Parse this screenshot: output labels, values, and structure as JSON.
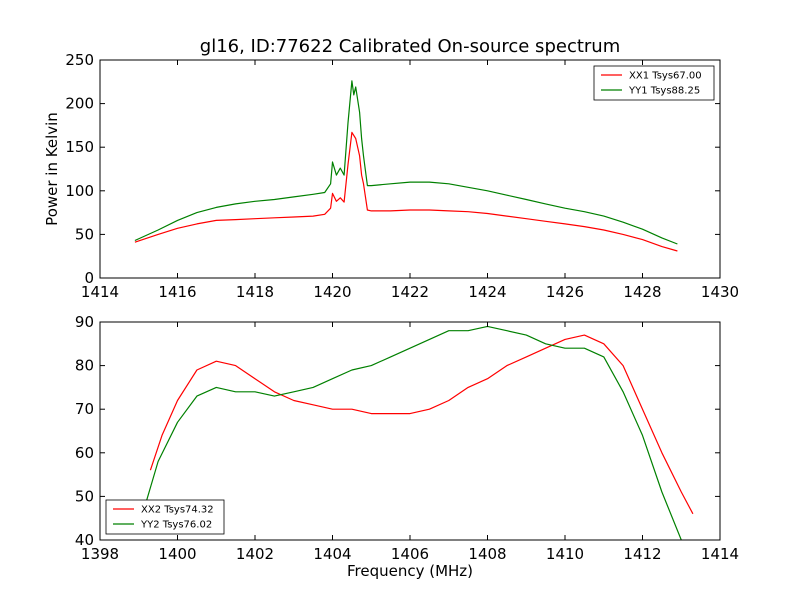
{
  "figure": {
    "title": "gl16, ID:77622 Calibrated On-source spectrum"
  },
  "chart_data": [
    {
      "type": "line",
      "title": "gl16, ID:77622 Calibrated On-source spectrum",
      "xlabel": "",
      "ylabel": "Power in Kelvin",
      "xlim": [
        1414,
        1430
      ],
      "ylim": [
        0,
        250
      ],
      "xticks": [
        1414,
        1416,
        1418,
        1420,
        1422,
        1424,
        1426,
        1428,
        1430
      ],
      "yticks": [
        0,
        50,
        100,
        150,
        200,
        250
      ],
      "grid": false,
      "legend_position": "top-right",
      "series": [
        {
          "name": "XX1 Tsys67.00",
          "color": "#ff0000",
          "x": [
            1414.9,
            1415.5,
            1416.0,
            1416.5,
            1417.0,
            1417.5,
            1418.0,
            1418.5,
            1419.0,
            1419.5,
            1419.8,
            1419.95,
            1420.0,
            1420.1,
            1420.2,
            1420.3,
            1420.4,
            1420.5,
            1420.6,
            1420.7,
            1420.75,
            1420.8,
            1420.9,
            1421.0,
            1421.5,
            1422.0,
            1422.5,
            1423.0,
            1423.5,
            1424.0,
            1424.5,
            1425.0,
            1425.5,
            1426.0,
            1426.5,
            1427.0,
            1427.5,
            1428.0,
            1428.5,
            1428.9
          ],
          "y": [
            41,
            50,
            57,
            62,
            66,
            67,
            68,
            69,
            70,
            71,
            73,
            80,
            97,
            88,
            92,
            87,
            130,
            167,
            160,
            140,
            118,
            108,
            78,
            77,
            77,
            78,
            78,
            77,
            76,
            74,
            71,
            68,
            65,
            62,
            59,
            55,
            50,
            44,
            36,
            31
          ]
        },
        {
          "name": "YY1 Tsys88.25",
          "color": "#008000",
          "x": [
            1414.9,
            1415.5,
            1416.0,
            1416.5,
            1417.0,
            1417.5,
            1418.0,
            1418.5,
            1419.0,
            1419.5,
            1419.8,
            1419.95,
            1420.0,
            1420.1,
            1420.2,
            1420.3,
            1420.4,
            1420.5,
            1420.55,
            1420.6,
            1420.7,
            1420.75,
            1420.8,
            1420.9,
            1421.0,
            1421.5,
            1422.0,
            1422.5,
            1423.0,
            1423.5,
            1424.0,
            1424.5,
            1425.0,
            1425.5,
            1426.0,
            1426.5,
            1427.0,
            1427.5,
            1428.0,
            1428.5,
            1428.9
          ],
          "y": [
            43,
            55,
            66,
            75,
            81,
            85,
            88,
            90,
            93,
            96,
            98,
            108,
            133,
            118,
            126,
            118,
            178,
            226,
            210,
            219,
            190,
            160,
            140,
            106,
            106,
            108,
            110,
            110,
            108,
            104,
            100,
            95,
            90,
            85,
            80,
            76,
            71,
            64,
            56,
            46,
            39
          ]
        }
      ]
    },
    {
      "type": "line",
      "title": "",
      "xlabel": "Frequency (MHz)",
      "ylabel": "",
      "xlim": [
        1398,
        1414
      ],
      "ylim": [
        40,
        90
      ],
      "xticks": [
        1398,
        1400,
        1402,
        1404,
        1406,
        1408,
        1410,
        1412,
        1414
      ],
      "yticks": [
        40,
        50,
        60,
        70,
        80,
        90
      ],
      "grid": false,
      "legend_position": "bottom-left",
      "series": [
        {
          "name": "XX2 Tsys74.32",
          "color": "#ff0000",
          "x": [
            1399.3,
            1399.6,
            1400.0,
            1400.5,
            1401.0,
            1401.5,
            1402.0,
            1402.5,
            1403.0,
            1403.5,
            1404.0,
            1404.5,
            1405.0,
            1405.5,
            1406.0,
            1406.5,
            1407.0,
            1407.5,
            1408.0,
            1408.5,
            1409.0,
            1409.5,
            1410.0,
            1410.5,
            1411.0,
            1411.5,
            1412.0,
            1412.5,
            1413.0,
            1413.3
          ],
          "y": [
            56,
            64,
            72,
            79,
            81,
            80,
            77,
            74,
            72,
            71,
            70,
            70,
            69,
            69,
            69,
            70,
            72,
            75,
            77,
            80,
            82,
            84,
            86,
            87,
            85,
            80,
            70,
            60,
            51,
            46
          ]
        },
        {
          "name": "YY2 Tsys76.02",
          "color": "#008000",
          "x": [
            1399.2,
            1399.5,
            1400.0,
            1400.5,
            1401.0,
            1401.5,
            1402.0,
            1402.5,
            1403.0,
            1403.5,
            1404.0,
            1404.5,
            1405.0,
            1405.5,
            1406.0,
            1406.5,
            1407.0,
            1407.5,
            1408.0,
            1408.5,
            1409.0,
            1409.5,
            1410.0,
            1410.5,
            1411.0,
            1411.5,
            1412.0,
            1412.5,
            1413.0
          ],
          "y": [
            49,
            58,
            67,
            73,
            75,
            74,
            74,
            73,
            74,
            75,
            77,
            79,
            80,
            82,
            84,
            86,
            88,
            88,
            89,
            88,
            87,
            85,
            84,
            84,
            82,
            74,
            64,
            51,
            40
          ]
        }
      ]
    }
  ]
}
